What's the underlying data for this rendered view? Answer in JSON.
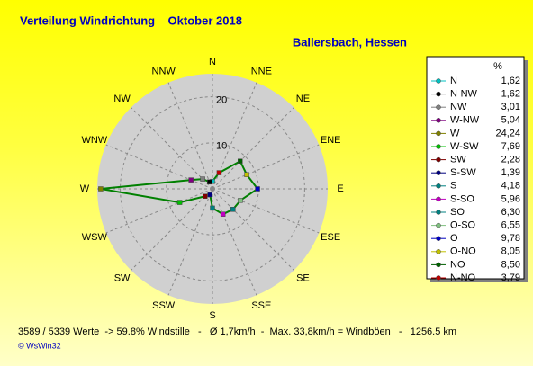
{
  "chart_data": {
    "type": "radar",
    "title": "Verteilung Windrichtung    Oktober 2018",
    "subtitle": "Ballersbach, Hessen",
    "directions": [
      "N",
      "NNE",
      "NE",
      "ENE",
      "E",
      "ESE",
      "SE",
      "SSE",
      "S",
      "SSW",
      "SW",
      "WSW",
      "W",
      "WNW",
      "NW",
      "NNW"
    ],
    "rlim": [
      0,
      25
    ],
    "rticks": [
      10,
      20
    ],
    "legend_unit": "%",
    "line_color": "#008000",
    "categories": [
      "N",
      "N-NW",
      "NW",
      "W-NW",
      "W",
      "W-SW",
      "SW",
      "S-SW",
      "S",
      "S-SO",
      "SO",
      "O-SO",
      "O",
      "O-NO",
      "NO",
      "N-NO"
    ],
    "values": [
      1.62,
      1.62,
      3.01,
      5.04,
      24.24,
      7.69,
      2.28,
      1.39,
      4.18,
      5.96,
      6.3,
      6.55,
      9.78,
      8.05,
      8.5,
      3.79
    ],
    "value_labels": [
      "1,62",
      "1,62",
      "3,01",
      "5,04",
      "24,24",
      "7,69",
      "2,28",
      "1,39",
      "4,18",
      "5,96",
      "6,30",
      "6,55",
      "9,78",
      "8,05",
      "8,50",
      "3,79"
    ],
    "colors": [
      "#00c0c0",
      "#000000",
      "#808080",
      "#800080",
      "#808000",
      "#00c000",
      "#800000",
      "#000080",
      "#008080",
      "#c000c0",
      "#008080",
      "#80c080",
      "#0000c0",
      "#c0c000",
      "#006000",
      "#c00000"
    ],
    "footer": "3589 / 5339 Werte  -> 59.8% Windstille   -   Ø 1,7km/h  -  Max. 33,8km/h = Windböen   -   1256.5 km",
    "credit": "© WsWin32"
  }
}
